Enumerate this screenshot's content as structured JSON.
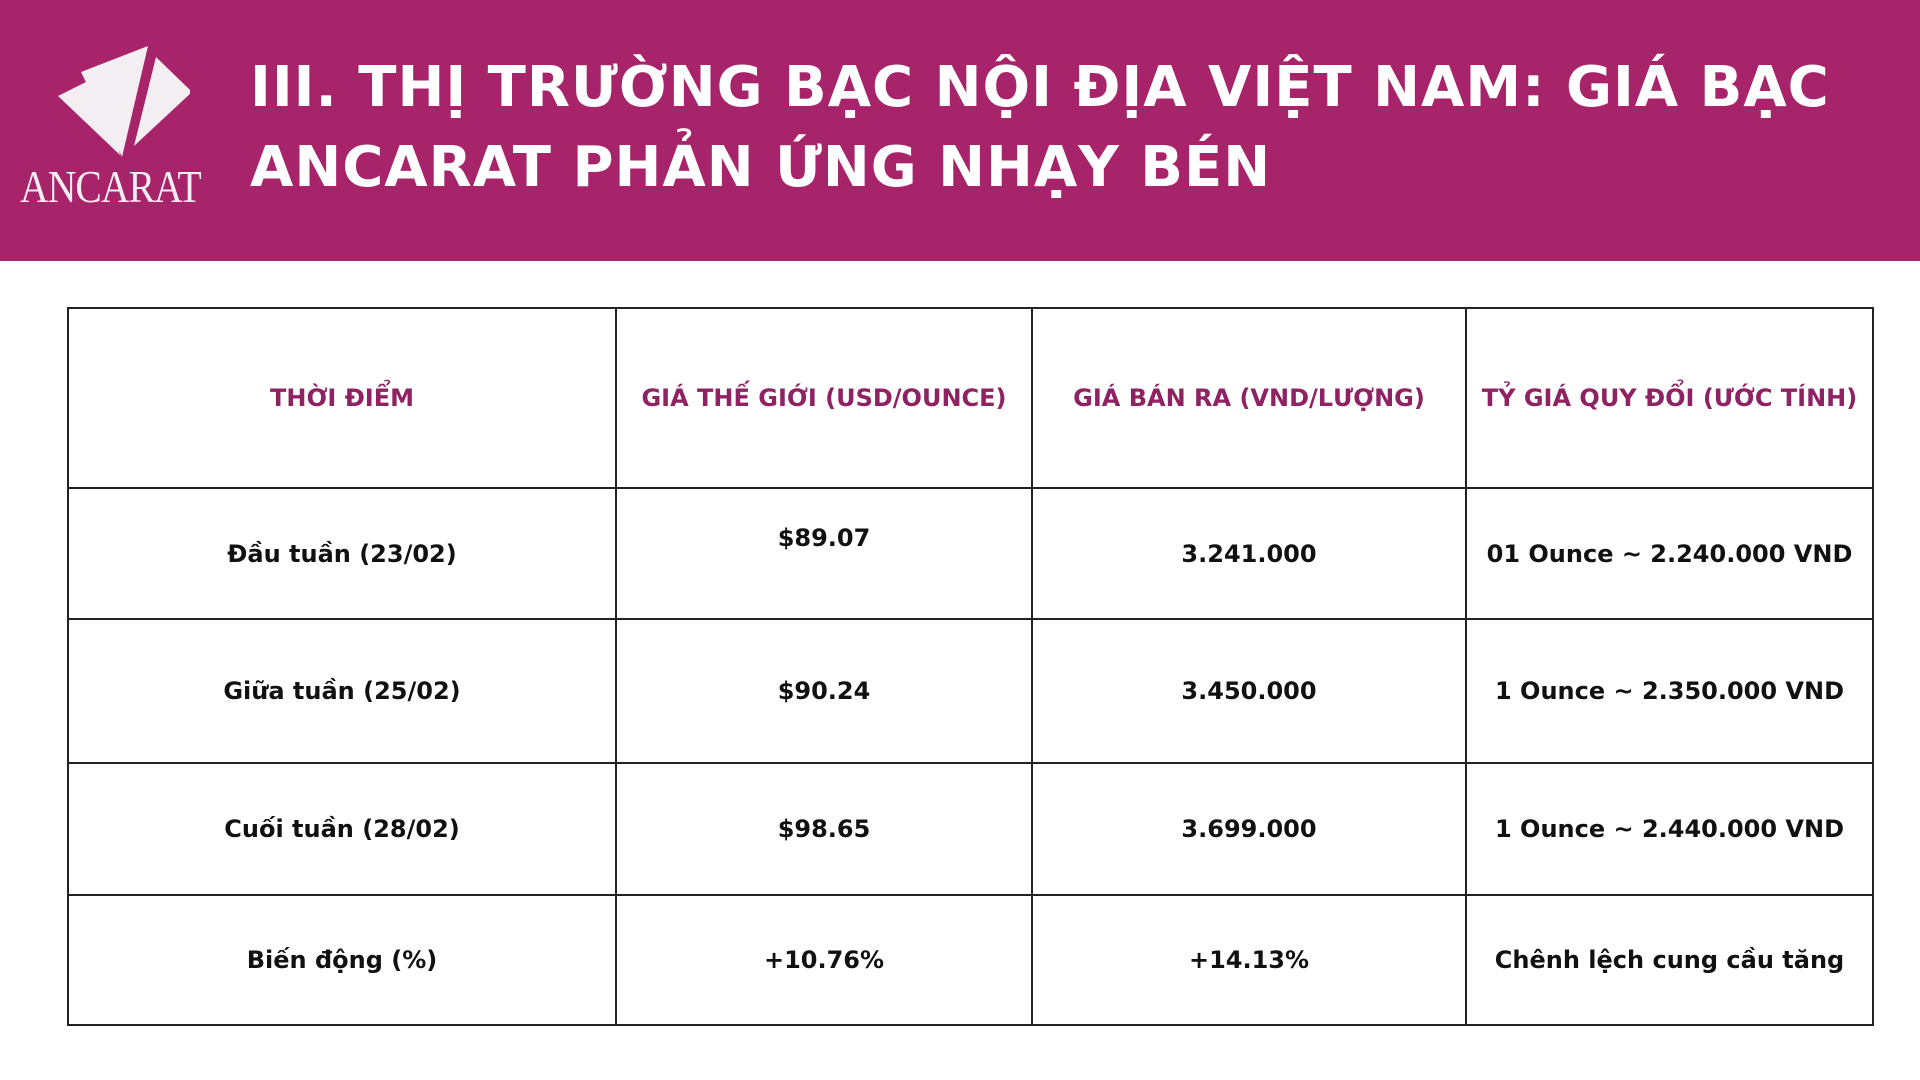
{
  "header": {
    "logo_text": "ANCARAT",
    "title": "III. THỊ TRƯỜNG BẠC NỘI ĐỊA VIỆT NAM: GIÁ BẠC ANCARAT PHẢN ỨNG NHẠY BÉN",
    "background_color": "#a8246a"
  },
  "table": {
    "header_color": "#8e2263",
    "columns": [
      "THỜI ĐIỂM",
      "GIÁ THẾ GIỚI (USD/OUNCE)",
      "GIÁ BÁN RA (VND/LƯỢNG)",
      "TỶ GIÁ QUY ĐỔI (ƯỚC TÍNH)"
    ],
    "rows": [
      [
        "Đầu tuần (23/02)",
        "$89.07",
        "3.241.000",
        "01 Ounce ~ 2.240.000 VND"
      ],
      [
        "Giữa tuần (25/02)",
        "$90.24",
        "3.450.000",
        "1 Ounce ~ 2.350.000 VND"
      ],
      [
        "Cuối tuần (28/02)",
        "$98.65",
        "3.699.000",
        "1 Ounce ~ 2.440.000 VND"
      ],
      [
        "Biến động (%)",
        "+10.76%",
        "+14.13%",
        "Chênh lệch cung cầu tăng"
      ]
    ]
  }
}
